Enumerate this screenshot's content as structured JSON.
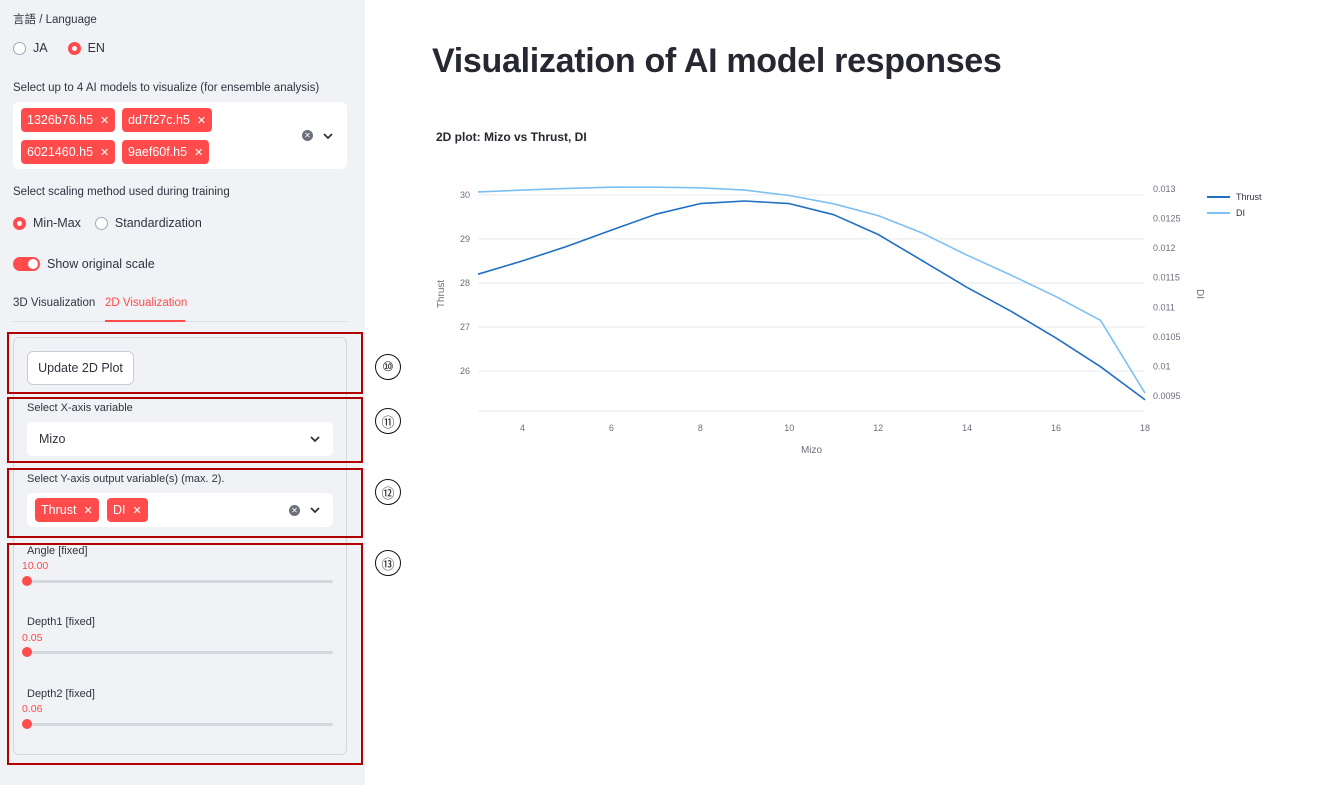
{
  "sidebar": {
    "language_label": "言語 / Language",
    "language_options": [
      "JA",
      "EN"
    ],
    "language_selected": "EN",
    "models_label": "Select up to 4 AI models to visualize (for ensemble analysis)",
    "models_selected": [
      "1326b76.h5",
      "dd7f27c.h5",
      "6021460.h5",
      "9aef60f.h5"
    ],
    "scaling_label": "Select scaling method used during training",
    "scaling_options": [
      "Min-Max",
      "Standardization"
    ],
    "scaling_selected": "Min-Max",
    "toggle_label": "Show original scale",
    "toggle_on": true,
    "tabs": [
      "3D Visualization",
      "2D Visualization"
    ],
    "active_tab": "2D Visualization",
    "update_button": "Update 2D Plot",
    "x_axis_label": "Select X-axis variable",
    "x_axis_value": "Mizo",
    "y_axis_label": "Select Y-axis output variable(s) (max. 2).",
    "y_axis_selected": [
      "Thrust",
      "DI"
    ],
    "sliders": [
      {
        "label": "Angle [fixed]",
        "value": "10.00",
        "fraction": 0.0
      },
      {
        "label": "Depth1 [fixed]",
        "value": "0.05",
        "fraction": 0.0
      },
      {
        "label": "Depth2 [fixed]",
        "value": "0.06",
        "fraction": 0.0
      }
    ]
  },
  "annotations": [
    "⑩",
    "⑪",
    "⑫",
    "⑬"
  ],
  "main": {
    "title": "Visualization of AI model responses",
    "plot_title": "2D plot: Mizo vs Thrust, DI"
  },
  "colors": {
    "accent": "#ff4b4b",
    "thrust": "#1f6fc4",
    "di": "#7cc0f4",
    "highlight": "#b00000"
  },
  "chart_data": {
    "type": "line",
    "xlabel": "Mizo",
    "ylabel": "Thrust",
    "y2label": "DI",
    "xlim": [
      3,
      18
    ],
    "ylim": [
      25.3,
      30.2
    ],
    "y2lim": [
      0.0094,
      0.01305
    ],
    "xticks": [
      4,
      6,
      8,
      10,
      12,
      14,
      16,
      18
    ],
    "yticks": [
      26,
      27,
      28,
      29,
      30
    ],
    "y2ticks": [
      0.0095,
      0.01,
      0.0105,
      0.011,
      0.0115,
      0.012,
      0.0125,
      0.013
    ],
    "y2tick_labels": [
      "0.0095",
      "0.01",
      "0.0105",
      "0.011",
      "0.0115",
      "0.012",
      "0.0125",
      "0.013"
    ],
    "legend_position": "top-right",
    "grid": true,
    "series": [
      {
        "name": "Thrust",
        "axis": "y",
        "x": [
          3,
          4,
          5,
          6,
          7,
          8,
          9,
          10,
          11,
          12,
          13,
          14,
          15,
          16,
          17,
          18
        ],
        "values": [
          28.2,
          28.5,
          28.83,
          29.2,
          29.56,
          29.8,
          29.86,
          29.8,
          29.55,
          29.1,
          28.5,
          27.9,
          27.35,
          26.75,
          26.1,
          25.35
        ]
      },
      {
        "name": "DI",
        "axis": "y2",
        "x": [
          3,
          4,
          5,
          6,
          7,
          8,
          9,
          10,
          11,
          12,
          13,
          14,
          15,
          16,
          17,
          18
        ],
        "values": [
          0.01295,
          0.01298,
          0.01301,
          0.01303,
          0.01303,
          0.01302,
          0.01298,
          0.01289,
          0.01275,
          0.01255,
          0.01225,
          0.01188,
          0.01154,
          0.01118,
          0.01078,
          0.00955
        ]
      }
    ]
  }
}
